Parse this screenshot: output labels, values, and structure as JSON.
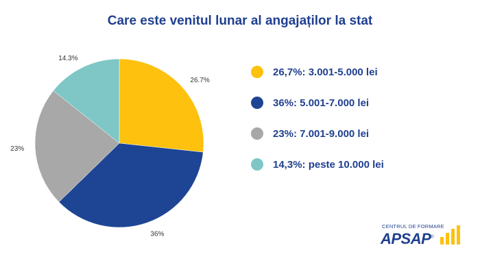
{
  "title": "Care este venitul lunar al angajaților la stat",
  "chart_data": {
    "type": "pie",
    "title": "Care este venitul lunar al angajaților la stat",
    "slices": [
      {
        "label": "26,7%: 3.001-5.000 lei",
        "value": 26.7,
        "data_label": "26.7%",
        "color": "#fdc10e"
      },
      {
        "label": "36%: 5.001-7.000 lei",
        "value": 36,
        "data_label": "36%",
        "color": "#1e4594"
      },
      {
        "label": "23%: 7.001-9.000 lei",
        "value": 23,
        "data_label": "23%",
        "color": "#a8a8a8"
      },
      {
        "label": "14,3%: peste 10.000 lei",
        "value": 14.3,
        "data_label": "14.3%",
        "color": "#7ec7c6"
      }
    ],
    "legend_position": "right"
  },
  "logo": {
    "top_text": "CENTRUL DE FORMARE",
    "main_text": "APSAP",
    "registered": "®",
    "brand_color": "#1f3f8f",
    "accent_color": "#fdc10e"
  }
}
